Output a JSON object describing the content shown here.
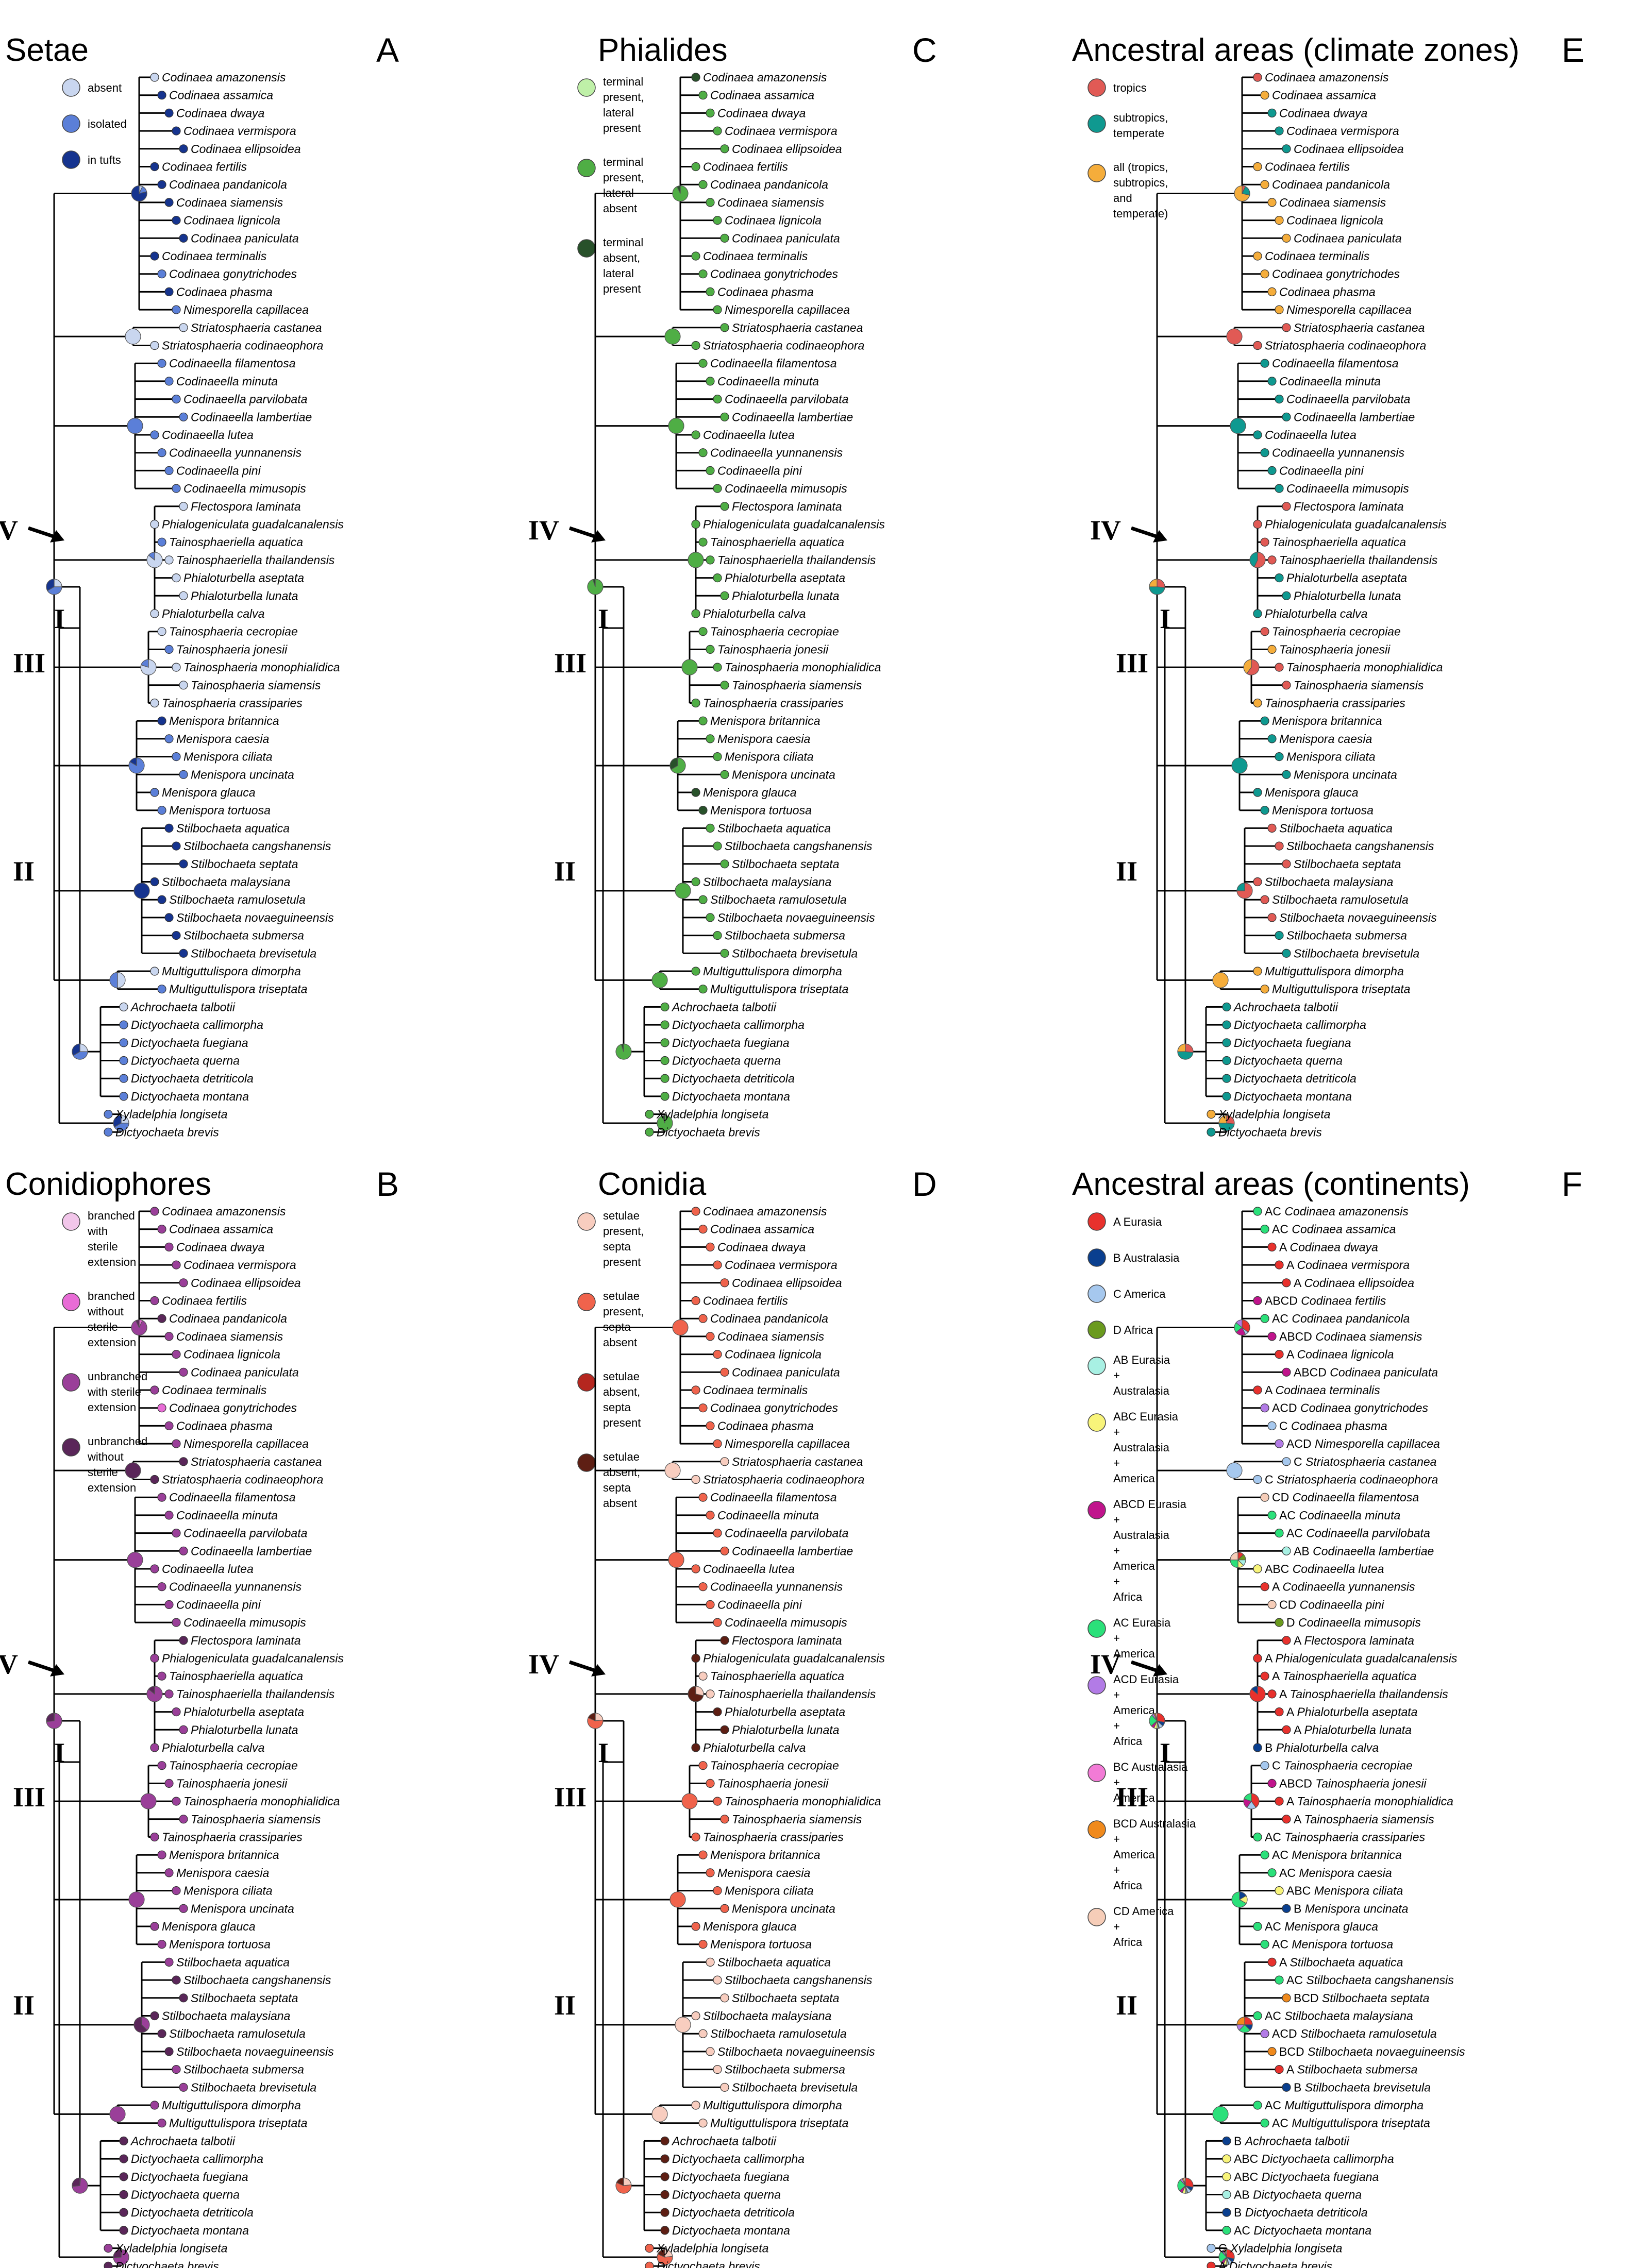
{
  "taxa": [
    "Codinaea amazonensis",
    "Codinaea assamica",
    "Codinaea dwaya",
    "Codinaea vermispora",
    "Codinaea ellipsoidea",
    "Codinaea fertilis",
    "Codinaea pandanicola",
    "Codinaea siamensis",
    "Codinaea lignicola",
    "Codinaea paniculata",
    "Codinaea terminalis",
    "Codinaea gonytrichodes",
    "Codinaea phasma",
    "Nimesporella capillacea",
    "Striatosphaeria castanea",
    "Striatosphaeria codinaeophora",
    "Codinaeella filamentosa",
    "Codinaeella minuta",
    "Codinaeella parvilobata",
    "Codinaeella lambertiae",
    "Codinaeella lutea",
    "Codinaeella yunnanensis",
    "Codinaeella pini",
    "Codinaeella mimusopis",
    "Flectospora laminata",
    "Phialogeniculata guadalcanalensis",
    "Tainosphaeriella aquatica",
    "Tainosphaeriella thailandensis",
    "Phialoturbella aseptata",
    "Phialoturbella lunata",
    "Phialoturbella calva",
    "Tainosphaeria cecropiae",
    "Tainosphaeria jonesii",
    "Tainosphaeria monophialidica",
    "Tainosphaeria siamensis",
    "Tainosphaeria crassiparies",
    "Menispora britannica",
    "Menispora caesia",
    "Menispora ciliata",
    "Menispora uncinata",
    "Menispora glauca",
    "Menispora tortuosa",
    "Stilbochaeta aquatica",
    "Stilbochaeta cangshanensis",
    "Stilbochaeta septata",
    "Stilbochaeta malaysiana",
    "Stilbochaeta ramulosetula",
    "Stilbochaeta novaeguineensis",
    "Stilbochaeta submersa",
    "Stilbochaeta brevisetula",
    "Multiguttulispora dimorpha",
    "Multiguttulispora triseptata",
    "Achrochaeta talbotii",
    "Dictyochaeta callimorpha",
    "Dictyochaeta fuegiana",
    "Dictyochaeta querna",
    "Dictyochaeta detriticola",
    "Dictyochaeta montana",
    "Xyladelphia longiseta",
    "Dictyochaeta brevis"
  ],
  "node_labels": {
    "I": "I",
    "II": "II",
    "III": "III",
    "IV": "IV"
  },
  "panels": [
    {
      "letter": "A",
      "title": "Setae",
      "legend": [
        {
          "label": [
            "absent"
          ],
          "color": "#c9d6ef"
        },
        {
          "label": [
            "isolated"
          ],
          "color": "#5b7fd8"
        },
        {
          "label": [
            "in tufts"
          ],
          "color": "#16348f"
        }
      ],
      "tip_states": [
        0,
        2,
        2,
        2,
        2,
        2,
        2,
        2,
        2,
        2,
        2,
        1,
        2,
        1,
        0,
        0,
        1,
        1,
        1,
        1,
        1,
        1,
        1,
        1,
        0,
        0,
        1,
        0,
        0,
        0,
        0,
        0,
        1,
        0,
        0,
        0,
        2,
        1,
        1,
        1,
        1,
        1,
        2,
        2,
        2,
        2,
        2,
        2,
        2,
        2,
        0,
        1,
        0,
        1,
        1,
        1,
        1,
        1,
        1,
        1
      ],
      "tip_prefix": []
    },
    {
      "letter": "B",
      "title": "Conidiophores",
      "legend": [
        {
          "label": [
            "branched",
            "with",
            "sterile",
            "extension"
          ],
          "color": "#f2c6ea"
        },
        {
          "label": [
            "branched",
            "without",
            "sterile",
            "extension"
          ],
          "color": "#e86cd6"
        },
        {
          "label": [
            "unbranched",
            "with sterile",
            "extension"
          ],
          "color": "#9a3f99"
        },
        {
          "label": [
            "unbranched",
            "without",
            "sterile",
            "extension"
          ],
          "color": "#5a2659"
        }
      ],
      "tip_states": [
        2,
        2,
        2,
        2,
        2,
        2,
        3,
        2,
        2,
        2,
        2,
        1,
        2,
        2,
        3,
        3,
        2,
        2,
        2,
        2,
        2,
        2,
        2,
        2,
        3,
        2,
        2,
        2,
        2,
        2,
        2,
        2,
        2,
        2,
        2,
        2,
        2,
        2,
        2,
        2,
        2,
        2,
        2,
        3,
        3,
        3,
        3,
        3,
        2,
        2,
        2,
        2,
        3,
        3,
        3,
        3,
        3,
        3,
        2,
        3
      ],
      "tip_prefix": []
    },
    {
      "letter": "C",
      "title": "Phialides",
      "legend": [
        {
          "label": [
            "terminal",
            "present,",
            "lateral",
            "present"
          ],
          "color": "#bff0a8"
        },
        {
          "label": [
            "terminal",
            "present,",
            "lateral",
            "absent"
          ],
          "color": "#4fae45"
        },
        {
          "label": [
            "terminal",
            "absent,",
            "lateral",
            "present"
          ],
          "color": "#28512a"
        }
      ],
      "tip_states": [
        2,
        1,
        1,
        1,
        1,
        1,
        1,
        1,
        1,
        1,
        1,
        1,
        1,
        1,
        1,
        1,
        1,
        1,
        1,
        1,
        1,
        1,
        1,
        1,
        1,
        1,
        1,
        1,
        1,
        1,
        1,
        1,
        1,
        1,
        1,
        1,
        1,
        1,
        1,
        1,
        2,
        2,
        1,
        1,
        1,
        1,
        1,
        1,
        1,
        1,
        1,
        1,
        1,
        1,
        1,
        1,
        1,
        1,
        1,
        1
      ],
      "tip_prefix": []
    },
    {
      "letter": "D",
      "title": "Conidia",
      "legend": [
        {
          "label": [
            "setulae",
            "present,",
            "septa",
            "present"
          ],
          "color": "#f8cdbf"
        },
        {
          "label": [
            "setulae",
            "present,",
            "septa",
            "absent"
          ],
          "color": "#f0634c"
        },
        {
          "label": [
            "setulae",
            "absent,",
            "septa",
            "present"
          ],
          "color": "#b5261f"
        },
        {
          "label": [
            "setulae",
            "absent,",
            "septa",
            "absent"
          ],
          "color": "#5e1f14"
        }
      ],
      "tip_states": [
        1,
        1,
        1,
        1,
        1,
        1,
        1,
        1,
        1,
        1,
        1,
        1,
        1,
        1,
        0,
        0,
        1,
        1,
        1,
        1,
        1,
        1,
        1,
        1,
        3,
        3,
        0,
        0,
        3,
        3,
        3,
        1,
        1,
        1,
        1,
        1,
        1,
        1,
        1,
        1,
        1,
        1,
        0,
        0,
        0,
        0,
        0,
        0,
        0,
        0,
        0,
        0,
        3,
        3,
        3,
        3,
        3,
        3,
        1,
        1
      ],
      "tip_prefix": []
    },
    {
      "letter": "E",
      "title": "Ancestral areas (climate zones)",
      "legend": [
        {
          "label": [
            "tropics"
          ],
          "color": "#e15a55"
        },
        {
          "label": [
            "subtropics,",
            "temperate"
          ],
          "color": "#0f9990"
        },
        {
          "label": [
            "all (tropics,",
            "subtropics,",
            "and",
            "temperate)"
          ],
          "color": "#f5ad3b"
        }
      ],
      "tip_states": [
        0,
        2,
        1,
        1,
        1,
        2,
        2,
        2,
        2,
        2,
        2,
        2,
        2,
        2,
        0,
        0,
        1,
        1,
        1,
        1,
        1,
        1,
        1,
        1,
        0,
        0,
        0,
        0,
        1,
        1,
        1,
        0,
        2,
        0,
        0,
        2,
        1,
        1,
        1,
        1,
        1,
        1,
        0,
        0,
        0,
        0,
        0,
        0,
        1,
        1,
        2,
        2,
        1,
        1,
        1,
        1,
        1,
        1,
        2,
        1
      ],
      "tip_prefix": []
    },
    {
      "letter": "F",
      "title": "Ancestral areas (continents)",
      "legend": [
        {
          "label": [
            "A Eurasia"
          ],
          "color": "#e8312d"
        },
        {
          "label": [
            "B Australasia"
          ],
          "color": "#0a3f8f"
        },
        {
          "label": [
            "C America"
          ],
          "color": "#a6c8ee"
        },
        {
          "label": [
            "D Africa"
          ],
          "color": "#6a9a1e"
        },
        {
          "label": [
            "AB Eurasia",
            "+",
            "Australasia"
          ],
          "color": "#a8f0e3"
        },
        {
          "label": [
            "ABC Eurasia",
            "+",
            "Australasia",
            "+",
            "America"
          ],
          "color": "#f8f47a"
        },
        {
          "label": [
            "ABCD Eurasia",
            "+",
            "Australasia",
            "+",
            "America",
            "+",
            "Africa"
          ],
          "color": "#c0148c"
        },
        {
          "label": [
            "AC Eurasia",
            "+",
            "America"
          ],
          "color": "#2be07a"
        },
        {
          "label": [
            "ACD Eurasia",
            "+",
            "America",
            "+",
            "Africa"
          ],
          "color": "#b27be6"
        },
        {
          "label": [
            "BC Australasia",
            "+",
            "America"
          ],
          "color": "#f27bd6"
        },
        {
          "label": [
            "BCD Australasia",
            "+",
            "America",
            "+",
            "Africa"
          ],
          "color": "#f08a1d"
        },
        {
          "label": [
            "CD America",
            "+",
            "Africa"
          ],
          "color": "#f6cdb8"
        }
      ],
      "tip_states": [
        7,
        7,
        0,
        0,
        0,
        6,
        7,
        6,
        0,
        6,
        0,
        8,
        2,
        8,
        2,
        2,
        11,
        7,
        7,
        4,
        5,
        0,
        11,
        3,
        0,
        0,
        0,
        0,
        0,
        0,
        1,
        2,
        6,
        0,
        0,
        7,
        7,
        7,
        5,
        1,
        7,
        7,
        0,
        7,
        10,
        7,
        8,
        10,
        0,
        1,
        7,
        7,
        1,
        5,
        5,
        4,
        1,
        7,
        2,
        0
      ],
      "tip_prefix": [
        "AC",
        "AC",
        "A",
        "A",
        "A",
        "ABCD",
        "AC",
        "ABCD",
        "A",
        "ABCD",
        "A",
        "ACD",
        "C",
        "ACD",
        "C",
        "C",
        "CD",
        "AC",
        "AC",
        "AB",
        "ABC",
        "A",
        "CD",
        "D",
        "A",
        "A",
        "A",
        "A",
        "A",
        "A",
        "B",
        "C",
        "ABCD",
        "A",
        "A",
        "AC",
        "AC",
        "AC",
        "ABC",
        "B",
        "AC",
        "AC",
        "A",
        "AC",
        "BCD",
        "AC",
        "ACD",
        "BCD",
        "A",
        "B",
        "AC",
        "AC",
        "B",
        "ABC",
        "ABC",
        "AB",
        "B",
        "AC",
        "C",
        "A"
      ]
    }
  ]
}
